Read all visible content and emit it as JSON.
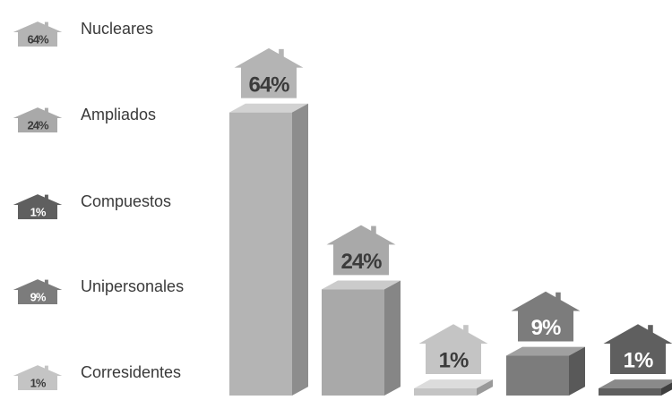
{
  "chart_data": {
    "type": "bar",
    "categories": [
      "Nucleares",
      "Ampliados",
      "Compuestos",
      "Unipersonales",
      "Corresidentes"
    ],
    "values": [
      64,
      24,
      1,
      9,
      1
    ],
    "value_labels": [
      "64%",
      "24%",
      "1%",
      "9%",
      "1%"
    ],
    "title": "",
    "xlabel": "",
    "ylabel": "",
    "ylim": [
      0,
      70
    ],
    "grid": false,
    "legend": "left",
    "colors": [
      "#b4b4b4",
      "#a9a9a9",
      "#5f5f5f",
      "#7c7c7c",
      "#c4c4c4"
    ],
    "side_colors": [
      "#8d8d8d",
      "#868686",
      "#3f3f3f",
      "#595959",
      "#9a9a9a"
    ],
    "top_colors": [
      "#d2d2d2",
      "#cbcbcb",
      "#8a8a8a",
      "#a0a0a0",
      "#dcdcdc"
    ],
    "label_colors": [
      "#3b3b3b",
      "#3b3b3b",
      "#ffffff",
      "#ffffff",
      "#3b3b3b"
    ],
    "bar_order": [
      0,
      1,
      4,
      3,
      2
    ]
  }
}
